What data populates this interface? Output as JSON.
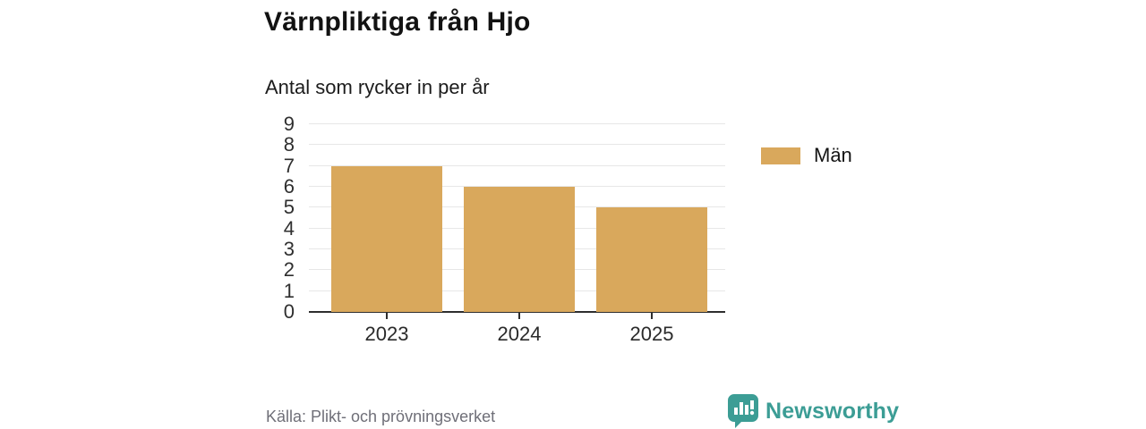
{
  "header": {
    "title": "Värnpliktiga från Hjo",
    "subtitle": "Antal som rycker in per år"
  },
  "chart_data": {
    "type": "bar",
    "categories": [
      "2023",
      "2024",
      "2025"
    ],
    "series": [
      {
        "name": "Män",
        "values": [
          7,
          6,
          5
        ]
      }
    ],
    "title": "Värnpliktiga från Hjo",
    "subtitle": "Antal som rycker in per år",
    "xlabel": "",
    "ylabel": "",
    "ylim": [
      0,
      9
    ],
    "yticks": [
      0,
      1,
      2,
      3,
      4,
      5,
      6,
      7,
      8,
      9
    ],
    "grid": true,
    "legend_position": "right",
    "bar_color": "#d9a85c"
  },
  "legend": {
    "items": [
      {
        "label": "Män",
        "color": "#d9a85c"
      }
    ]
  },
  "footer": {
    "source": "Källa: Plikt- och prövningsverket",
    "brand_name": "Newsworthy"
  },
  "colors": {
    "bar": "#d9a85c",
    "brand_teal": "#3c9d95",
    "gridline": "#e7e7e7",
    "axis": "#2e2e2e"
  },
  "icons": {
    "brand": "bar-chart-speech-bubble-icon"
  }
}
